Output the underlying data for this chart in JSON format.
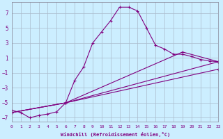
{
  "xlabel": "Windchill (Refroidissement éolien,°C)",
  "bg_color": "#cceeff",
  "line_color": "#800080",
  "grid_color": "#aabbcc",
  "xlim": [
    0,
    23
  ],
  "ylim": [
    -7.5,
    8.5
  ],
  "xticks": [
    0,
    1,
    2,
    3,
    4,
    5,
    6,
    7,
    8,
    9,
    10,
    11,
    12,
    13,
    14,
    15,
    16,
    17,
    18,
    19,
    20,
    21,
    22,
    23
  ],
  "yticks": [
    -7,
    -5,
    -3,
    -1,
    1,
    3,
    5,
    7
  ],
  "lines": [
    {
      "x": [
        0,
        1,
        2,
        3,
        4,
        5,
        6,
        7,
        8,
        9,
        10,
        11,
        12,
        13,
        14,
        15,
        16,
        17,
        18,
        19,
        20,
        21,
        22,
        23
      ],
      "y": [
        -6.0,
        -6.3,
        -7.0,
        -6.7,
        -6.5,
        -6.2,
        -5.0,
        -2.0,
        -0.2,
        3.0,
        4.5,
        6.0,
        7.8,
        7.8,
        7.3,
        5.0,
        2.7,
        2.2,
        1.5,
        1.5,
        1.2,
        0.8,
        0.6,
        0.5
      ],
      "marker": "+"
    },
    {
      "x": [
        0,
        6,
        23
      ],
      "y": [
        -6.3,
        -5.0,
        -0.5
      ],
      "marker": "+"
    },
    {
      "x": [
        0,
        6,
        23
      ],
      "y": [
        -6.3,
        -5.0,
        0.5
      ],
      "marker": "+"
    },
    {
      "x": [
        0,
        6,
        19,
        23
      ],
      "y": [
        -6.3,
        -5.0,
        1.8,
        0.5
      ],
      "marker": "+"
    }
  ]
}
